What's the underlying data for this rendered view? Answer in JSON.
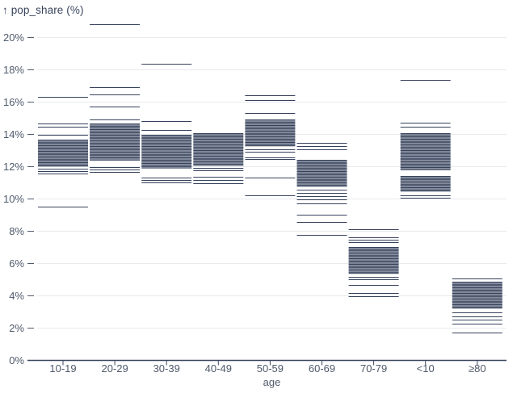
{
  "chart_data": {
    "type": "tick",
    "title": "↑ pop_share (%)",
    "ylabel": "pop_share (%)",
    "xlabel": "age",
    "grid": true,
    "ylim": [
      0,
      21
    ],
    "y_tick_values": [
      0,
      2,
      4,
      6,
      8,
      10,
      12,
      14,
      16,
      18,
      20
    ],
    "y_tick_labels": [
      "0%",
      "2%",
      "4%",
      "6%",
      "8%",
      "10%",
      "12%",
      "14%",
      "16%",
      "18%",
      "20%"
    ],
    "categories": [
      "10-19",
      "20-29",
      "30-39",
      "40-49",
      "50-59",
      "60-69",
      "70-79",
      "<10",
      "≥80"
    ],
    "series": [
      {
        "category": "10-19",
        "values": [
          16.3,
          14.65,
          14.45,
          13.95,
          13.65,
          13.58,
          13.51,
          13.44,
          13.37,
          13.3,
          13.23,
          13.16,
          13.09,
          13.02,
          12.95,
          12.88,
          12.81,
          12.74,
          12.67,
          12.6,
          12.53,
          12.46,
          12.39,
          12.32,
          12.25,
          12.18,
          12.11,
          12.04,
          11.85,
          11.7,
          11.55,
          9.5
        ]
      },
      {
        "category": "20-29",
        "values": [
          20.8,
          16.9,
          16.45,
          15.7,
          14.9,
          14.65,
          14.58,
          14.51,
          14.44,
          14.37,
          14.3,
          14.23,
          14.16,
          14.09,
          14.02,
          13.95,
          13.88,
          13.81,
          13.74,
          13.67,
          13.6,
          13.53,
          13.46,
          13.39,
          13.32,
          13.25,
          13.18,
          13.11,
          13.04,
          12.97,
          12.9,
          12.83,
          12.76,
          12.69,
          12.62,
          12.55,
          12.48,
          12.41,
          11.95,
          11.8,
          11.65
        ]
      },
      {
        "category": "30-39",
        "values": [
          18.35,
          14.8,
          14.25,
          13.95,
          13.88,
          13.81,
          13.74,
          13.67,
          13.6,
          13.53,
          13.46,
          13.39,
          13.32,
          13.25,
          13.18,
          13.11,
          13.04,
          12.97,
          12.9,
          12.83,
          12.76,
          12.69,
          12.62,
          12.55,
          12.48,
          12.41,
          12.34,
          12.27,
          12.2,
          12.13,
          12.06,
          11.99,
          11.92,
          11.3,
          11.15,
          11.0
        ]
      },
      {
        "category": "40-49",
        "values": [
          14.05,
          13.98,
          13.91,
          13.84,
          13.77,
          13.7,
          13.63,
          13.56,
          13.49,
          13.42,
          13.35,
          13.28,
          13.21,
          13.14,
          13.07,
          13.0,
          12.93,
          12.86,
          12.79,
          12.72,
          12.65,
          12.58,
          12.51,
          12.44,
          12.37,
          12.3,
          12.23,
          12.16,
          12.09,
          11.9,
          11.75,
          11.35,
          11.15,
          10.95
        ]
      },
      {
        "category": "50-59",
        "values": [
          16.4,
          16.1,
          15.3,
          14.9,
          14.83,
          14.76,
          14.69,
          14.62,
          14.55,
          14.48,
          14.41,
          14.34,
          14.27,
          14.2,
          14.13,
          14.06,
          13.99,
          13.92,
          13.85,
          13.78,
          13.71,
          13.64,
          13.57,
          13.5,
          13.43,
          13.36,
          13.29,
          13.05,
          12.9,
          12.55,
          12.45,
          11.3,
          10.2
        ]
      },
      {
        "category": "60-69",
        "values": [
          13.45,
          13.25,
          13.05,
          12.4,
          12.33,
          12.26,
          12.19,
          12.12,
          12.05,
          11.98,
          11.91,
          11.84,
          11.77,
          11.7,
          11.63,
          11.56,
          11.49,
          11.42,
          11.35,
          11.28,
          11.21,
          11.14,
          11.07,
          11.0,
          10.93,
          10.86,
          10.79,
          10.55,
          10.35,
          10.15,
          9.95,
          9.7,
          9.0,
          8.55,
          7.75
        ]
      },
      {
        "category": "70-79",
        "values": [
          8.1,
          7.6,
          7.45,
          7.3,
          7.0,
          6.93,
          6.86,
          6.79,
          6.72,
          6.65,
          6.58,
          6.51,
          6.44,
          6.37,
          6.3,
          6.23,
          6.16,
          6.09,
          6.02,
          5.95,
          5.88,
          5.81,
          5.74,
          5.67,
          5.6,
          5.53,
          5.46,
          5.39,
          5.15,
          5.0,
          4.65,
          4.15,
          3.95
        ]
      },
      {
        "category": "<10",
        "values": [
          17.35,
          14.7,
          14.45,
          14.05,
          13.98,
          13.91,
          13.84,
          13.77,
          13.7,
          13.63,
          13.56,
          13.49,
          13.42,
          13.35,
          13.28,
          13.21,
          13.14,
          13.07,
          13.0,
          12.93,
          12.86,
          12.79,
          12.72,
          12.65,
          12.58,
          12.51,
          12.44,
          12.37,
          12.3,
          12.23,
          12.16,
          12.09,
          12.02,
          11.95,
          11.88,
          11.81,
          11.4,
          11.33,
          11.26,
          11.19,
          11.12,
          11.05,
          10.98,
          10.91,
          10.84,
          10.77,
          10.7,
          10.63,
          10.56,
          10.49,
          10.2,
          10.05
        ]
      },
      {
        "category": "≥80",
        "values": [
          5.05,
          4.85,
          4.78,
          4.71,
          4.64,
          4.57,
          4.5,
          4.43,
          4.36,
          4.29,
          4.22,
          4.15,
          4.08,
          4.01,
          3.94,
          3.87,
          3.8,
          3.73,
          3.66,
          3.59,
          3.52,
          3.45,
          3.38,
          3.31,
          3.24,
          2.95,
          2.7,
          2.5,
          2.25,
          1.7
        ]
      }
    ],
    "colors": {
      "tick_stroke": "#36425c",
      "gridline": "#e8eaec",
      "axis_line": "#39455e",
      "axis_label": "#4f5a6b",
      "title": "#39455e"
    },
    "legend": "none"
  }
}
